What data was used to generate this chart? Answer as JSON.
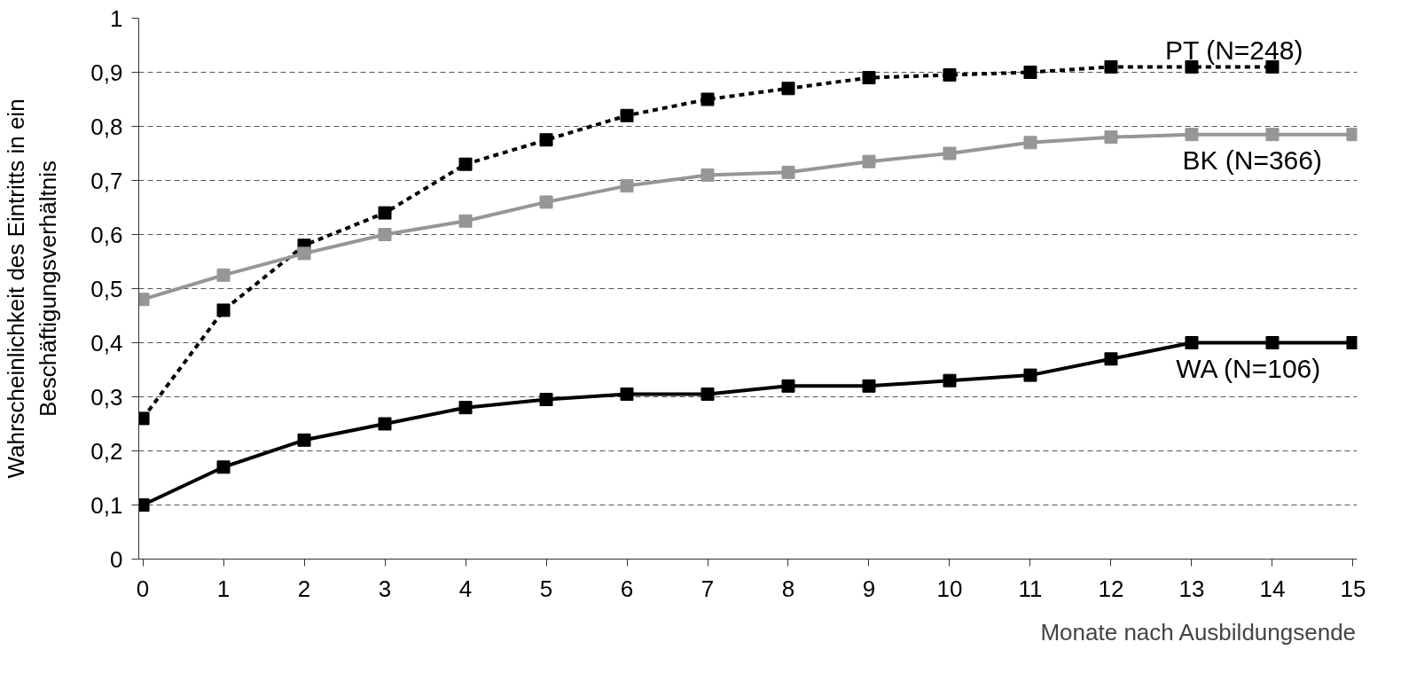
{
  "chart_data": {
    "type": "line",
    "xlabel": "Monate nach Ausbildungsende",
    "ylabel": "Wahrscheinlichkeit des Eintritts in ein\nBeschäftigungsverhältnis",
    "x": [
      0,
      1,
      2,
      3,
      4,
      5,
      6,
      7,
      8,
      9,
      10,
      11,
      12,
      13,
      14,
      15
    ],
    "series": [
      {
        "name": "PT (N=248)",
        "color": "#000000",
        "line_style": "dashed",
        "x": [
          0,
          1,
          2,
          3,
          4,
          5,
          6,
          7,
          8,
          9,
          10,
          11,
          12,
          13,
          14
        ],
        "values": [
          0.26,
          0.46,
          0.58,
          0.64,
          0.73,
          0.775,
          0.82,
          0.85,
          0.87,
          0.89,
          0.895,
          0.9,
          0.91,
          0.91,
          0.91
        ]
      },
      {
        "name": "BK (N=366)",
        "color": "#969696",
        "line_style": "solid",
        "values": [
          0.48,
          0.525,
          0.565,
          0.6,
          0.625,
          0.66,
          0.69,
          0.71,
          0.715,
          0.735,
          0.75,
          0.77,
          0.78,
          0.785,
          0.785,
          0.785
        ]
      },
      {
        "name": "WA (N=106)",
        "color": "#000000",
        "line_style": "solid",
        "values": [
          0.1,
          0.17,
          0.22,
          0.25,
          0.28,
          0.295,
          0.305,
          0.305,
          0.32,
          0.32,
          0.33,
          0.34,
          0.37,
          0.4,
          0.4,
          0.4
        ]
      }
    ],
    "marker": "square",
    "grid": "y",
    "xlim": [
      -0.05,
      15.05
    ],
    "xticks": [
      0,
      1,
      2,
      3,
      4,
      5,
      6,
      7,
      8,
      9,
      10,
      11,
      12,
      13,
      14,
      15
    ],
    "ylim": [
      0,
      1
    ],
    "yticks": [
      0,
      {
        "value": 0.1,
        "label": "0,1"
      },
      {
        "value": 0.2,
        "label": "0,2"
      },
      {
        "value": 0.3,
        "label": "0,3"
      },
      {
        "value": 0.4,
        "label": "0,4"
      },
      {
        "value": 0.5,
        "label": "0,5"
      },
      {
        "value": 0.6,
        "label": "0,6"
      },
      {
        "value": 0.7,
        "label": "0,7"
      },
      {
        "value": 0.8,
        "label": "0,8"
      },
      {
        "value": 0.9,
        "label": "0,9"
      },
      1
    ]
  }
}
